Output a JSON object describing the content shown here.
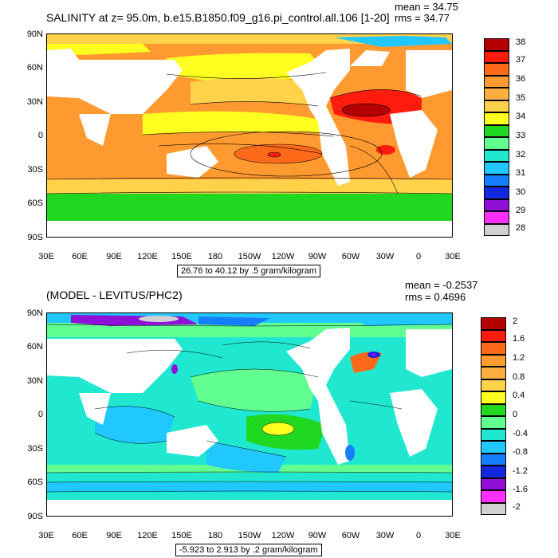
{
  "top_panel": {
    "title": "SALINITY at z=  95.0m, b.e15.B1850.f09_g16.pi_control.all.106 [1-20]",
    "mean": "mean = 34.75",
    "rms": "rms = 34.77",
    "range": "26.76 to 40.12 by .5 gram/kilogram",
    "lat_labels": [
      "90N",
      "60N",
      "30N",
      "0",
      "30S",
      "60S",
      "90S"
    ],
    "lon_labels": [
      "30E",
      "60E",
      "90E",
      "120E",
      "150E",
      "180",
      "150W",
      "120W",
      "90W",
      "60W",
      "30W",
      "0",
      "30E"
    ],
    "colorbar_labels": [
      "38",
      "37",
      "36",
      "35",
      "34",
      "33",
      "32",
      "31",
      "30",
      "29",
      "28"
    ],
    "colorbar_colors": [
      "#b40000",
      "#ff1c0e",
      "#ff6a1a",
      "#ff9a30",
      "#ffd24a",
      "#ffff20",
      "#20d820",
      "#60ff90",
      "#20e8d0",
      "#20c8ff",
      "#1480ff",
      "#1428e0",
      "#9010d8",
      "#ff30ff",
      "#d0d0d0",
      "#707070"
    ]
  },
  "bottom_panel": {
    "title": "(MODEL - LEVITUS/PHC2)",
    "mean": "mean = -0.2537",
    "rms": "rms = 0.4696",
    "range": "-5.923 to 2.913 by .2 gram/kilogram",
    "lat_labels": [
      "90N",
      "60N",
      "30N",
      "0",
      "30S",
      "60S",
      "90S"
    ],
    "lon_labels": [
      "30E",
      "60E",
      "90E",
      "120E",
      "150E",
      "180",
      "150W",
      "120W",
      "90W",
      "60W",
      "30W",
      "0",
      "30E"
    ],
    "colorbar_labels": [
      "2",
      "1.6",
      "1.2",
      "0.8",
      "0.4",
      "0",
      "-0.4",
      "-0.8",
      "-1.2",
      "-1.6",
      "-2"
    ],
    "colorbar_colors": [
      "#b40000",
      "#ff1c0e",
      "#ff6a1a",
      "#ff9a30",
      "#ffd24a",
      "#ffff20",
      "#20d820",
      "#60ff90",
      "#20e8d0",
      "#20c8ff",
      "#1480ff",
      "#1428e0",
      "#9010d8",
      "#ff30ff",
      "#d0d0d0",
      "#707070"
    ]
  }
}
